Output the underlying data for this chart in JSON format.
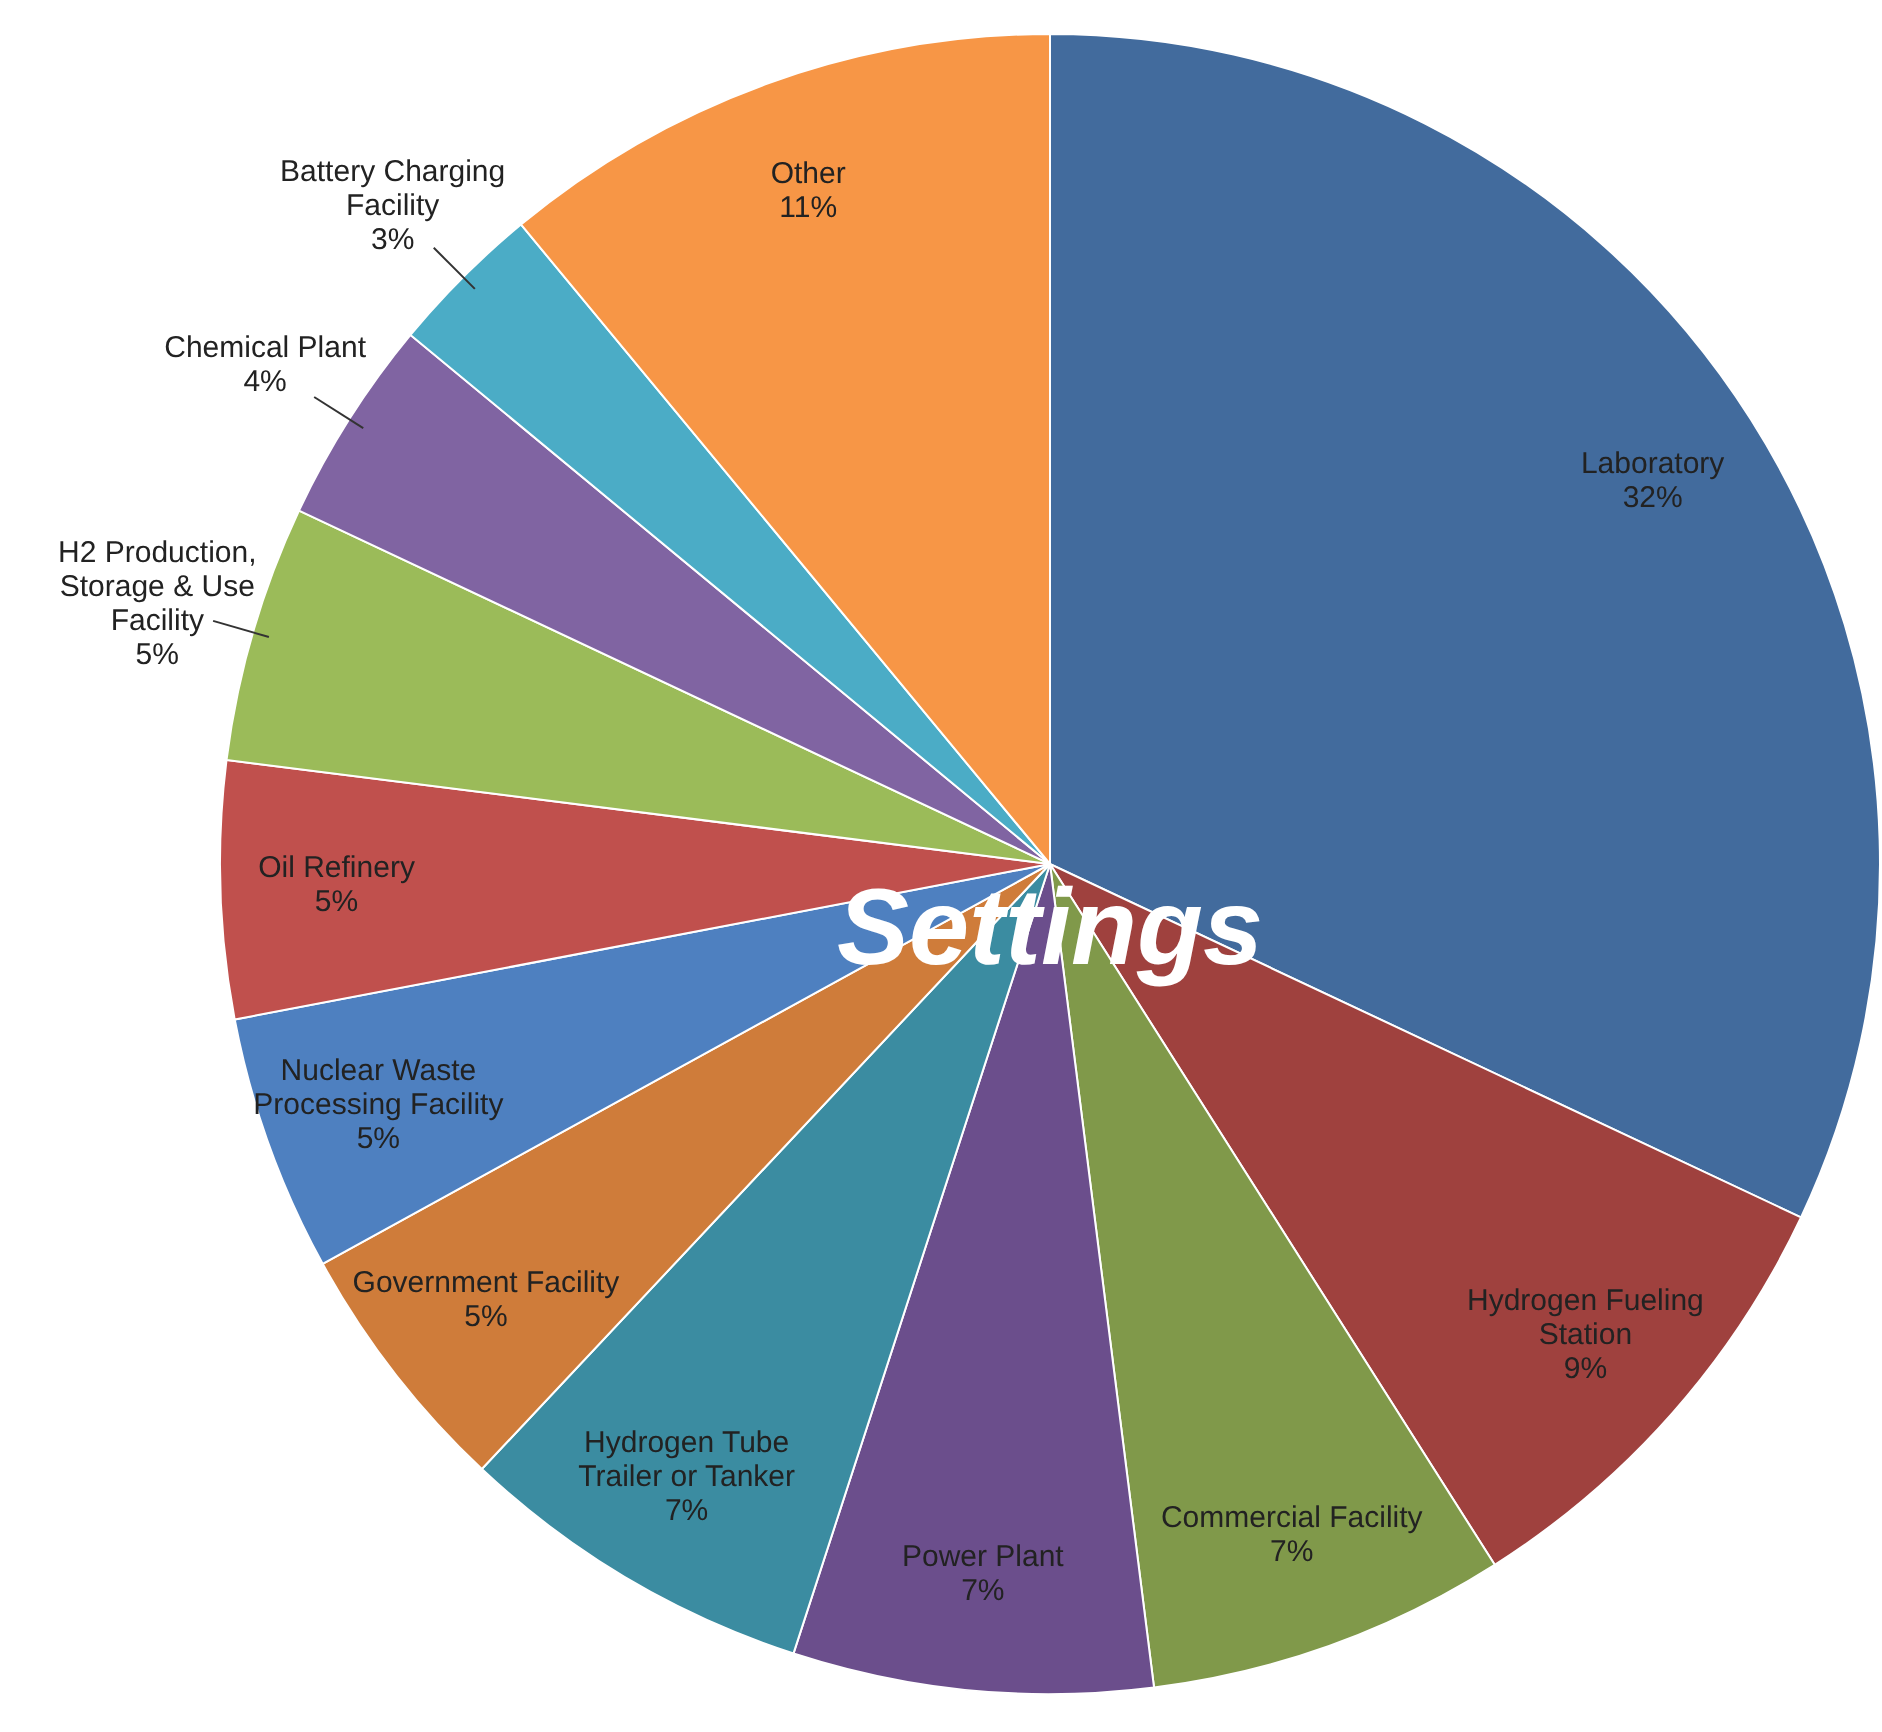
{
  "chart_data": {
    "type": "pie",
    "title": "Settings",
    "categories": [
      "Laboratory",
      "Hydrogen Fueling Station",
      "Commercial Facility",
      "Power Plant",
      "Hydrogen Tube Trailer or Tanker",
      "Government Facility",
      "Nuclear Waste Processing Facility",
      "Oil Refinery",
      "H2 Production, Storage & Use Facility",
      "Chemical Plant",
      "Battery Charging Facility",
      "Other"
    ],
    "values": [
      32,
      9,
      7,
      7,
      7,
      5,
      5,
      5,
      5,
      4,
      3,
      11
    ],
    "colors": [
      "#426b9d",
      "#9f413e",
      "#80994a",
      "#6b4e8c",
      "#3b8ca1",
      "#cf7c3a",
      "#4e80c0",
      "#c0504d",
      "#9bbb59",
      "#8064a2",
      "#4bacc6",
      "#f79646"
    ],
    "value_labels": [
      "32%",
      "9%",
      "7%",
      "7%",
      "7%",
      "5%",
      "5%",
      "5%",
      "5%",
      "4%",
      "3%",
      "11%"
    ]
  }
}
